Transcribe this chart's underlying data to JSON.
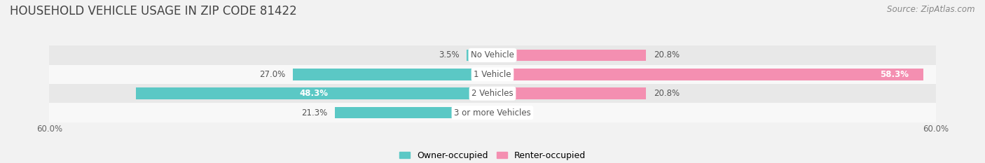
{
  "title": "HOUSEHOLD VEHICLE USAGE IN ZIP CODE 81422",
  "source": "Source: ZipAtlas.com",
  "categories": [
    "No Vehicle",
    "1 Vehicle",
    "2 Vehicles",
    "3 or more Vehicles"
  ],
  "owner_values": [
    3.5,
    27.0,
    48.3,
    21.3
  ],
  "renter_values": [
    20.8,
    58.3,
    20.8,
    0.0
  ],
  "owner_color": "#5bc8c5",
  "renter_color": "#f48fb1",
  "background_color": "#f2f2f2",
  "row_bg_colors": [
    "#e8e8e8",
    "#f8f8f8",
    "#e8e8e8",
    "#f8f8f8"
  ],
  "xlim": 60.0,
  "title_fontsize": 12,
  "source_fontsize": 8.5,
  "label_fontsize": 8.5,
  "category_fontsize": 8.5,
  "axis_label_fontsize": 8.5,
  "legend_fontsize": 9,
  "bar_height": 0.6,
  "owner_label_threshold": 30,
  "renter_label_threshold": 50
}
